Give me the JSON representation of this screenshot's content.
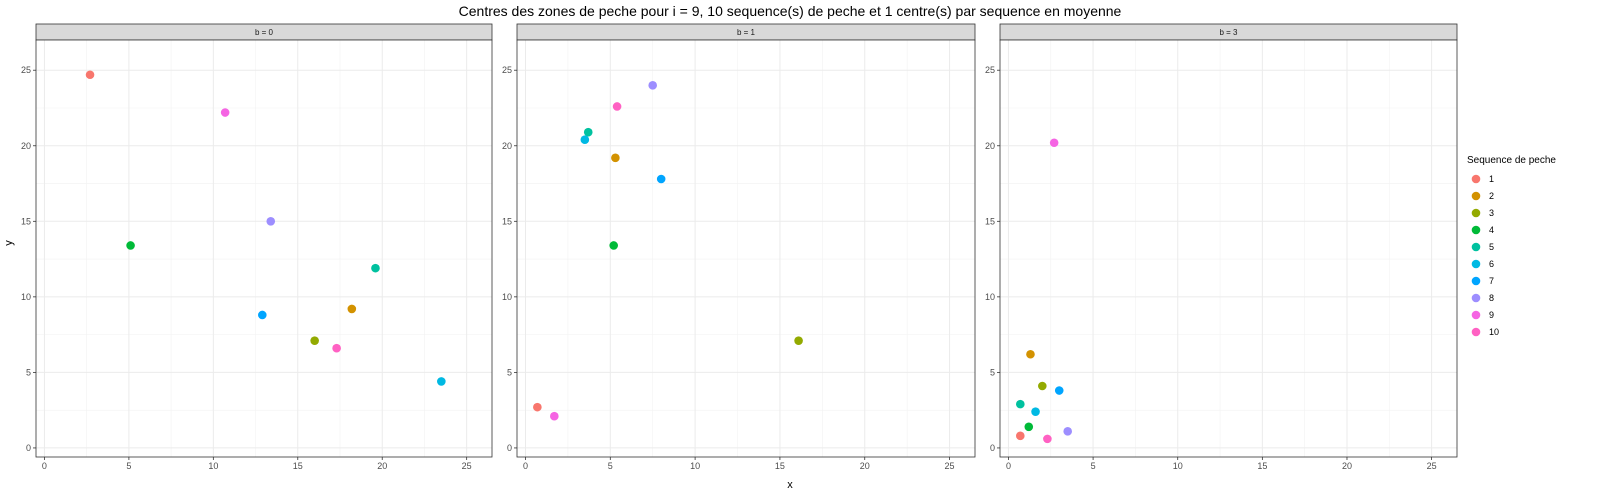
{
  "chart_data": {
    "type": "scatter",
    "title": "Centres des zones de peche pour i = 9, 10 sequence(s) de peche et 1 centre(s) par sequence en moyenne",
    "xlabel": "x",
    "ylabel": "y",
    "xlim": [
      -0.5,
      26.5
    ],
    "ylim": [
      -0.6,
      27
    ],
    "xticks": [
      "0",
      "5",
      "10",
      "15",
      "20",
      "25"
    ],
    "yticks": [
      "0",
      "5",
      "10",
      "15",
      "20",
      "25"
    ],
    "grid": true,
    "legend": {
      "title": "Sequence de peche",
      "position": "right",
      "entries": [
        {
          "label": "1",
          "color": "#F8766D"
        },
        {
          "label": "2",
          "color": "#D39200"
        },
        {
          "label": "3",
          "color": "#93AA00"
        },
        {
          "label": "4",
          "color": "#00BA38"
        },
        {
          "label": "5",
          "color": "#00C19F"
        },
        {
          "label": "6",
          "color": "#00B9E3"
        },
        {
          "label": "7",
          "color": "#00A5FF"
        },
        {
          "label": "8",
          "color": "#9D8EFF"
        },
        {
          "label": "9",
          "color": "#F564E3"
        },
        {
          "label": "10",
          "color": "#FF61C3"
        }
      ]
    },
    "panels": [
      {
        "strip": "b = 0",
        "points": [
          {
            "series": "1",
            "x": 2.7,
            "y": 24.7
          },
          {
            "series": "2",
            "x": 18.2,
            "y": 9.2
          },
          {
            "series": "3",
            "x": 16.0,
            "y": 7.1
          },
          {
            "series": "4",
            "x": 5.1,
            "y": 13.4
          },
          {
            "series": "5",
            "x": 19.6,
            "y": 11.9
          },
          {
            "series": "6",
            "x": 23.5,
            "y": 4.4
          },
          {
            "series": "7",
            "x": 12.9,
            "y": 8.8
          },
          {
            "series": "8",
            "x": 13.4,
            "y": 15.0
          },
          {
            "series": "9",
            "x": 10.7,
            "y": 22.2
          },
          {
            "series": "10",
            "x": 17.3,
            "y": 6.6
          }
        ]
      },
      {
        "strip": "b = 1",
        "points": [
          {
            "series": "1",
            "x": 0.7,
            "y": 2.7
          },
          {
            "series": "2",
            "x": 5.3,
            "y": 19.2
          },
          {
            "series": "3",
            "x": 16.1,
            "y": 7.1
          },
          {
            "series": "4",
            "x": 5.2,
            "y": 13.4
          },
          {
            "series": "5",
            "x": 3.7,
            "y": 20.9
          },
          {
            "series": "6",
            "x": 3.5,
            "y": 20.4
          },
          {
            "series": "7",
            "x": 8.0,
            "y": 17.8
          },
          {
            "series": "8",
            "x": 7.5,
            "y": 24.0
          },
          {
            "series": "9",
            "x": 1.7,
            "y": 2.1
          },
          {
            "series": "10",
            "x": 5.4,
            "y": 22.6
          }
        ]
      },
      {
        "strip": "b = 3",
        "points": [
          {
            "series": "1",
            "x": 0.7,
            "y": 0.8
          },
          {
            "series": "2",
            "x": 1.3,
            "y": 6.2
          },
          {
            "series": "3",
            "x": 2.0,
            "y": 4.1
          },
          {
            "series": "4",
            "x": 1.2,
            "y": 1.4
          },
          {
            "series": "5",
            "x": 0.7,
            "y": 2.9
          },
          {
            "series": "6",
            "x": 1.6,
            "y": 2.4
          },
          {
            "series": "7",
            "x": 3.0,
            "y": 3.8
          },
          {
            "series": "8",
            "x": 3.5,
            "y": 1.1
          },
          {
            "series": "9",
            "x": 2.7,
            "y": 20.2
          },
          {
            "series": "10",
            "x": 2.3,
            "y": 0.6
          }
        ]
      }
    ]
  }
}
